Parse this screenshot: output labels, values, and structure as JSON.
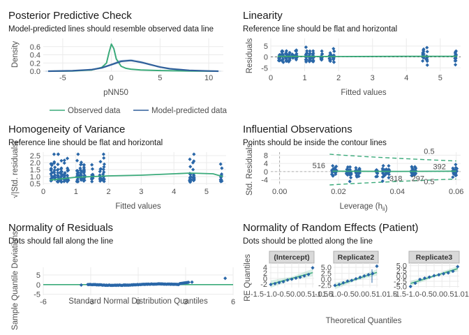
{
  "chart_data": [
    {
      "type": "line",
      "title": "Posterior Predictive Check",
      "subtitle": "Model-predicted lines should resemble observed data line",
      "xlabel": "pNN50",
      "ylabel": "Density",
      "xlim": [
        -7,
        11.5
      ],
      "ylim": [
        0,
        0.8
      ],
      "xticks": [
        -5,
        0,
        5,
        10
      ],
      "yticks": [
        0.0,
        0.2,
        0.4,
        0.6
      ],
      "series": [
        {
          "name": "Observed data",
          "color": "#3aaa7a",
          "x": [
            -6.5,
            -4,
            -2,
            -1,
            -0.5,
            -0.25,
            0,
            0.25,
            0.5,
            1,
            1.5,
            2,
            3,
            5,
            8,
            11
          ],
          "y": [
            0,
            0.005,
            0.03,
            0.09,
            0.2,
            0.45,
            0.66,
            0.55,
            0.3,
            0.12,
            0.07,
            0.05,
            0.03,
            0.015,
            0.005,
            0
          ]
        },
        {
          "name": "Model-predicted data",
          "color": "#2f5f9a",
          "x": [
            -6.5,
            -4,
            -2,
            -1,
            0,
            1,
            2,
            3,
            4,
            5,
            6,
            8,
            10,
            11
          ],
          "y": [
            0,
            0.01,
            0.04,
            0.08,
            0.16,
            0.24,
            0.26,
            0.22,
            0.16,
            0.1,
            0.06,
            0.02,
            0.005,
            0
          ]
        }
      ],
      "legend": "bottom"
    },
    {
      "type": "scatter",
      "title": "Linearity",
      "subtitle": "Reference line should be flat and horizontal",
      "xlabel": "Fitted values",
      "ylabel": "Residuals",
      "xlim": [
        0,
        5.6
      ],
      "ylim": [
        -6.5,
        8.5
      ],
      "xticks": [
        0,
        1,
        2,
        3,
        4,
        5
      ],
      "yticks": [
        -5,
        0,
        5
      ],
      "columns": [
        0.25,
        0.35,
        0.45,
        0.55,
        0.65,
        0.75,
        1.05,
        1.15,
        1.25,
        1.5,
        1.75,
        1.85,
        4.5,
        4.6,
        5.45
      ],
      "residual_range": [
        -5,
        5
      ]
    },
    {
      "type": "scatter",
      "title": "Homogeneity of Variance",
      "subtitle": "Reference line should be flat and horizontal",
      "xlabel": "Fitted values",
      "ylabel": "√|Std. residuals|",
      "xlim": [
        0,
        5.6
      ],
      "ylim": [
        0.4,
        2.75
      ],
      "xticks": [
        0,
        1,
        2,
        3,
        4,
        5
      ],
      "yticks": [
        0.5,
        1.0,
        1.5,
        2.0,
        2.5
      ],
      "smooth": {
        "x": [
          0.2,
          1,
          2,
          3,
          4,
          4.5,
          5.2,
          5.5
        ],
        "y": [
          0.75,
          0.95,
          1.05,
          1.1,
          1.2,
          1.25,
          1.2,
          1.0
        ]
      }
    },
    {
      "type": "scatter",
      "title": "Influential Observations",
      "subtitle": "Points should be inside the contour lines",
      "xlabel": "Leverage (hii)",
      "ylabel": "Std. Residuals",
      "xlim": [
        -0.003,
        0.0615
      ],
      "ylim": [
        -6.5,
        9.5
      ],
      "xticks": [
        0.0,
        0.02,
        0.04,
        0.06
      ],
      "yticks": [
        -4,
        0,
        4,
        8
      ],
      "annotations": [
        "516",
        "318",
        "297",
        "392"
      ],
      "contour_labels": [
        "0.5",
        "0.5"
      ]
    },
    {
      "type": "scatter",
      "title": "Normality of Residuals",
      "subtitle": "Dots should fall along the line",
      "xlabel": "Standard Normal Distribution Quantiles",
      "ylabel": "Sample Quantile Deviations",
      "xlim": [
        -6,
        6
      ],
      "ylim": [
        -5.5,
        9
      ],
      "xticks": [
        -6,
        -3,
        0,
        3,
        6
      ],
      "yticks": [
        -5,
        0,
        5
      ]
    },
    {
      "type": "scatter",
      "title": "Normality of Random Effects (Patient)",
      "subtitle": "Dots should be plotted along the line",
      "xlabel": "Theoretical Quantiles",
      "ylabel": "RE Quantiles",
      "facets": [
        {
          "name": "(Intercept)",
          "yticks": [
            -2,
            0,
            2,
            4
          ],
          "ylim": [
            -3.3,
            5.5
          ],
          "y": [
            -2.2,
            -1.9,
            -1.5,
            -1.2,
            -0.6,
            -0.3,
            0.1,
            0.4,
            0.9,
            1.4,
            3.8
          ]
        },
        {
          "name": "Replicate2",
          "yticks": [
            -2.5,
            0.0,
            2.5,
            5.0
          ],
          "ylim": [
            -3.5,
            6.8
          ],
          "y": [
            -2.6,
            -2.2,
            -1.5,
            -0.8,
            -0.5,
            0.2,
            0.8,
            1.4,
            1.9,
            2.4,
            5.5
          ]
        },
        {
          "name": "Replicate3",
          "yticks": [
            -5.0,
            -2.5,
            0.0,
            2.5,
            5.0
          ],
          "ylim": [
            -5.5,
            6.2
          ],
          "y": [
            -5.0,
            -3.4,
            -1.6,
            -1.0,
            -0.5,
            0.2,
            0.6,
            1.1,
            1.5,
            2.3,
            4.5
          ]
        }
      ],
      "xticks": [
        "-1.5",
        "-1.0",
        "-0.5",
        "0.0",
        "0.5",
        "1.0",
        "1.5"
      ]
    }
  ],
  "colors": {
    "observed": "#3aaa7a",
    "model": "#2f5f9a",
    "points": "#2a67a8",
    "fit": "#3aaa7a"
  }
}
